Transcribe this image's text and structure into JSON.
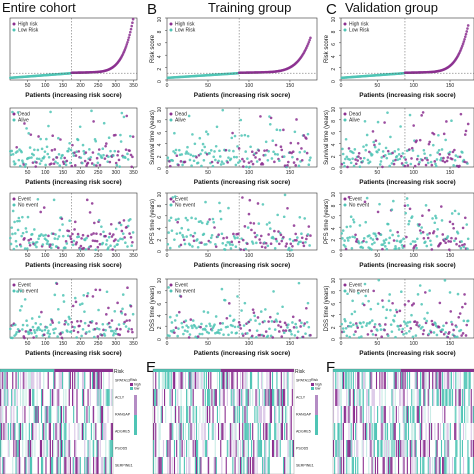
{
  "colors": {
    "high": "#8b2f8f",
    "low": "#4fc4b5",
    "cutoff": "#555555"
  },
  "columns": [
    {
      "letter": "",
      "title": "Entire cohort"
    },
    {
      "letter": "B",
      "title": "Training group"
    },
    {
      "letter": "C",
      "title": "Validation group"
    }
  ],
  "heatmap_letters": [
    "",
    "E",
    "F"
  ],
  "heatmap_legend": {
    "title": "Risk",
    "scale_title": "Risk",
    "scale_items": [
      "high",
      "low"
    ]
  },
  "xlabel": "Patients (increasing risk socre)",
  "chart_data": [
    {
      "type": "scatter",
      "panel": "risk-score",
      "ylabel": "Risk score",
      "legend": [
        "High risk",
        "Low Risk"
      ],
      "legend_position": "top-left",
      "columns": [
        {
          "n": 350,
          "cutoff_index": 175,
          "xticks": [
            50,
            100,
            150,
            200,
            250,
            300,
            350
          ],
          "ylim": [
            0,
            10
          ],
          "yticks": [
            0,
            2,
            4,
            6,
            8,
            10
          ],
          "cutoff_score": 1.1,
          "max_score": 9.8
        },
        {
          "n": 175,
          "cutoff_index": 88,
          "xticks": [
            0,
            50,
            100,
            150
          ],
          "ylim": [
            0,
            10
          ],
          "yticks": [
            0,
            2,
            4,
            6,
            8,
            10
          ],
          "cutoff_score": 1.1,
          "max_score": 6.5
        },
        {
          "n": 175,
          "cutoff_index": 88,
          "xticks": [
            0,
            50,
            100,
            150
          ],
          "ylim": [
            0,
            10
          ],
          "yticks": [
            0,
            2,
            4,
            6,
            8,
            10
          ],
          "cutoff_score": 1.1,
          "max_score": 8.5
        }
      ]
    },
    {
      "type": "scatter",
      "panel": "survival",
      "ylabel": "Survival time (years)",
      "legend": [
        "Dead",
        "Alive"
      ],
      "legend_position": "top-left",
      "columns": [
        {
          "n": 350,
          "cutoff_index": 175,
          "xticks": [
            50,
            100,
            150,
            200,
            250,
            300,
            350
          ],
          "ylim": [
            0,
            10
          ],
          "yticks": [
            0,
            2,
            4,
            6,
            8,
            10
          ]
        },
        {
          "n": 175,
          "cutoff_index": 88,
          "xticks": [
            0,
            50,
            100,
            150
          ],
          "ylim": [
            0,
            10
          ],
          "yticks": [
            0,
            2,
            4,
            6,
            8,
            10
          ]
        },
        {
          "n": 175,
          "cutoff_index": 88,
          "xticks": [
            0,
            50,
            100,
            150
          ],
          "ylim": [
            0,
            10
          ],
          "yticks": [
            0,
            2,
            4,
            6,
            8,
            10
          ]
        }
      ]
    },
    {
      "type": "scatter",
      "panel": "pfs",
      "ylabel": "PFS time (years)",
      "legend": [
        "Event",
        "No event"
      ],
      "legend_position": "top-left",
      "columns": [
        {
          "n": 350,
          "cutoff_index": 175,
          "xticks": [
            50,
            100,
            150,
            200,
            250,
            300,
            350
          ],
          "ylim": [
            0,
            10
          ],
          "yticks": [
            0,
            2,
            4,
            6,
            8,
            10
          ]
        },
        {
          "n": 175,
          "cutoff_index": 88,
          "xticks": [
            0,
            50,
            100,
            150
          ],
          "ylim": [
            0,
            10
          ],
          "yticks": [
            0,
            2,
            4,
            6,
            8,
            10
          ]
        },
        {
          "n": 175,
          "cutoff_index": 88,
          "xticks": [
            0,
            50,
            100,
            150
          ],
          "ylim": [
            0,
            10
          ],
          "yticks": [
            0,
            2,
            4,
            6,
            8,
            10
          ]
        }
      ]
    },
    {
      "type": "scatter",
      "panel": "dss",
      "ylabel": "DSS time (years)",
      "legend": [
        "Event",
        "No event"
      ],
      "legend_position": "top-left",
      "columns": [
        {
          "n": 350,
          "cutoff_index": 175,
          "xticks": [
            50,
            100,
            150,
            200,
            250,
            300,
            350
          ],
          "ylim": [
            0,
            10
          ],
          "yticks": [
            0,
            2,
            4,
            6,
            8,
            10
          ]
        },
        {
          "n": 175,
          "cutoff_index": 88,
          "xticks": [
            0,
            50,
            100,
            150
          ],
          "ylim": [
            0,
            10
          ],
          "yticks": [
            0,
            2,
            4,
            6,
            8,
            10
          ]
        },
        {
          "n": 175,
          "cutoff_index": 88,
          "xticks": [
            0,
            50,
            100,
            150
          ],
          "ylim": [
            0,
            10
          ],
          "yticks": [
            0,
            2,
            4,
            6,
            8,
            10
          ]
        }
      ]
    },
    {
      "type": "heatmap",
      "panel": "gene-expression",
      "genes": [
        "SPATA13",
        "ACLY",
        "RANGAP",
        "ADGRE5",
        "PSOD5",
        "SERPINE1"
      ],
      "groups": [
        "low",
        "high"
      ]
    }
  ]
}
